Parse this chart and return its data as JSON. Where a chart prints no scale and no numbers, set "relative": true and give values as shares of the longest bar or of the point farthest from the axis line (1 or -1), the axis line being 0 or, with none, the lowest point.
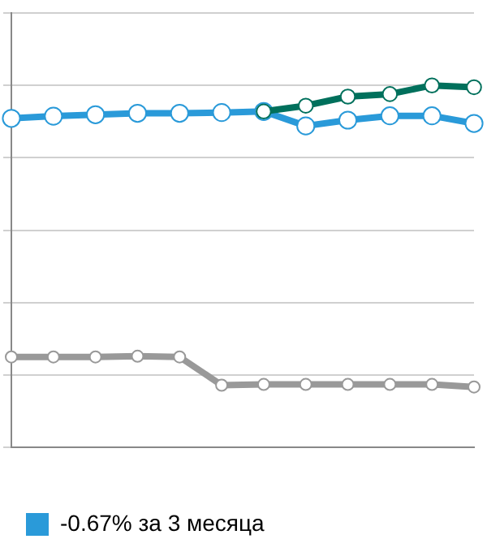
{
  "chart_data": {
    "type": "line",
    "relative": true,
    "categories": [
      null,
      null,
      null,
      null,
      null,
      null,
      null,
      null,
      null,
      null,
      null,
      null
    ],
    "series": [
      {
        "color": "#999999",
        "values": [
          0.25,
          0.25,
          0.25,
          0.252,
          0.25,
          0.172,
          0.174,
          0.174,
          0.174,
          0.174,
          0.174,
          0.167
        ]
      },
      {
        "color": "#00705c",
        "values": [
          null,
          null,
          null,
          null,
          null,
          null,
          0.928,
          0.944,
          0.969,
          0.976,
          1,
          0.995
        ]
      },
      {
        "name": "-0.67% за 3 месяца",
        "color": "#2a9ad9",
        "values": [
          0.909,
          0.915,
          0.919,
          0.923,
          0.923,
          0.925,
          0.928,
          0.888,
          0.904,
          0.916,
          0.916,
          0.895
        ]
      }
    ],
    "grid": "y",
    "legend": "bottom left",
    "marker": "circle",
    "line_style": "solid"
  }
}
